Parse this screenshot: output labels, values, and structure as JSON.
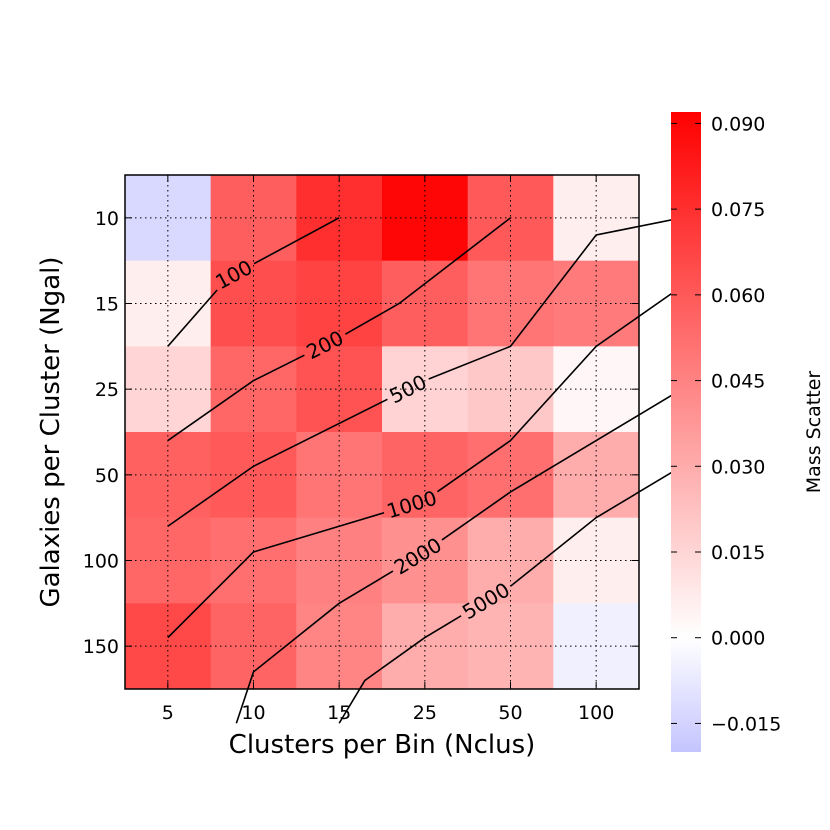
{
  "chart_data": {
    "type": "heatmap",
    "xlabel": "Clusters per Bin (Nclus)",
    "ylabel": "Galaxies per Cluster (Ngal)",
    "x_categories": [
      "5",
      "10",
      "15",
      "25",
      "50",
      "100"
    ],
    "y_categories": [
      "10",
      "15",
      "25",
      "50",
      "100",
      "150"
    ],
    "values": [
      [
        -0.013,
        0.058,
        0.075,
        0.09,
        0.06,
        0.006
      ],
      [
        0.006,
        0.064,
        0.068,
        0.058,
        0.05,
        0.048
      ],
      [
        0.015,
        0.055,
        0.062,
        0.016,
        0.02,
        0.003
      ],
      [
        0.057,
        0.06,
        0.05,
        0.056,
        0.052,
        0.03
      ],
      [
        0.055,
        0.052,
        0.046,
        0.04,
        0.03,
        0.006
      ],
      [
        0.066,
        0.056,
        0.044,
        0.03,
        0.027,
        -0.005
      ]
    ],
    "colorbar": {
      "label": "Mass Scatter",
      "min": -0.02,
      "max": 0.092,
      "ticks": [
        "0.090",
        "0.075",
        "0.060",
        "0.045",
        "0.030",
        "0.015",
        "0.000",
        "−0.015"
      ],
      "tick_values": [
        0.09,
        0.075,
        0.06,
        0.045,
        0.03,
        0.015,
        0.0,
        -0.015
      ]
    },
    "contours": [
      {
        "label": "100",
        "points": [
          [
            0,
            1.5
          ],
          [
            0.7,
            0.7
          ],
          [
            2,
            0
          ]
        ]
      },
      {
        "label": "200",
        "points": [
          [
            0,
            2.6
          ],
          [
            1,
            1.9
          ],
          [
            2,
            1.4
          ],
          [
            2.7,
            1.0
          ],
          [
            4,
            0
          ]
        ]
      },
      {
        "label": "500",
        "points": [
          [
            0,
            3.6
          ],
          [
            1,
            2.9
          ],
          [
            2,
            2.4
          ],
          [
            3,
            1.9
          ],
          [
            4,
            1.5
          ],
          [
            5,
            0.2
          ],
          [
            6,
            0
          ]
        ]
      },
      {
        "label": "1000",
        "points": [
          [
            0,
            4.9
          ],
          [
            1,
            3.9
          ],
          [
            2,
            3.6
          ],
          [
            3,
            3.3
          ],
          [
            4,
            2.6
          ],
          [
            5,
            1.5
          ],
          [
            6,
            0.8
          ]
        ]
      },
      {
        "label": "2000",
        "points": [
          [
            0.8,
            5.9
          ],
          [
            1,
            5.3
          ],
          [
            2,
            4.5
          ],
          [
            3,
            3.9
          ],
          [
            4,
            3.2
          ],
          [
            5,
            2.6
          ],
          [
            6,
            2.0
          ]
        ]
      },
      {
        "label": "5000",
        "points": [
          [
            2,
            5.9
          ],
          [
            2.3,
            5.4
          ],
          [
            3,
            4.9
          ],
          [
            4,
            4.3
          ],
          [
            5,
            3.5
          ],
          [
            6,
            2.9
          ]
        ]
      }
    ],
    "contour_levels": [
      100,
      200,
      500,
      1000,
      2000,
      5000
    ],
    "grid": true,
    "colormap": {
      "neg": "#c4c4ff",
      "zero": "#ffffff",
      "pos": "#ff0000"
    }
  }
}
